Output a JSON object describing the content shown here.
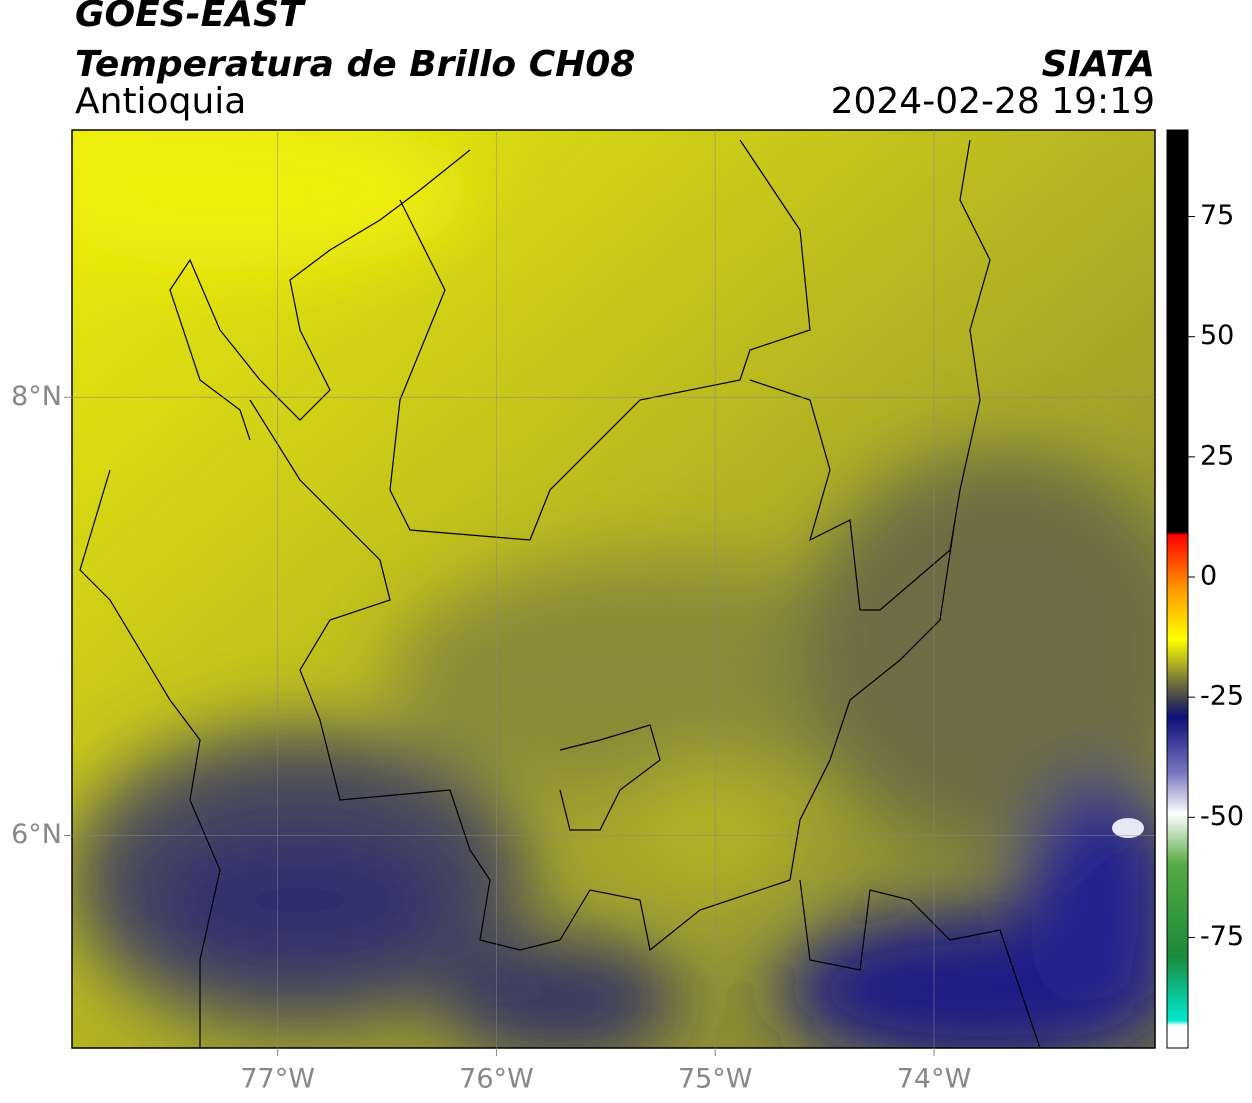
{
  "header": {
    "satellite": "GOES-EAST",
    "product": "Temperatura de Brillo CH08",
    "region": "Antioquia",
    "source": "SIATA",
    "datetime": "2024-02-28 19:19"
  },
  "map": {
    "lonlim": [
      -77.94,
      -72.99
    ],
    "latlim": [
      5.03,
      9.22
    ],
    "lon_ticks": [
      {
        "value": -77,
        "label": "77°W"
      },
      {
        "value": -76,
        "label": "76°W"
      },
      {
        "value": -75,
        "label": "75°W"
      },
      {
        "value": -74,
        "label": "74°W"
      }
    ],
    "lat_ticks": [
      {
        "value": 8,
        "label": "8°N"
      },
      {
        "value": 6,
        "label": "6°N"
      }
    ]
  },
  "colorbar": {
    "lim": [
      -98,
      93
    ],
    "ticks": [
      75,
      50,
      25,
      0,
      -25,
      -50,
      -75
    ]
  }
}
